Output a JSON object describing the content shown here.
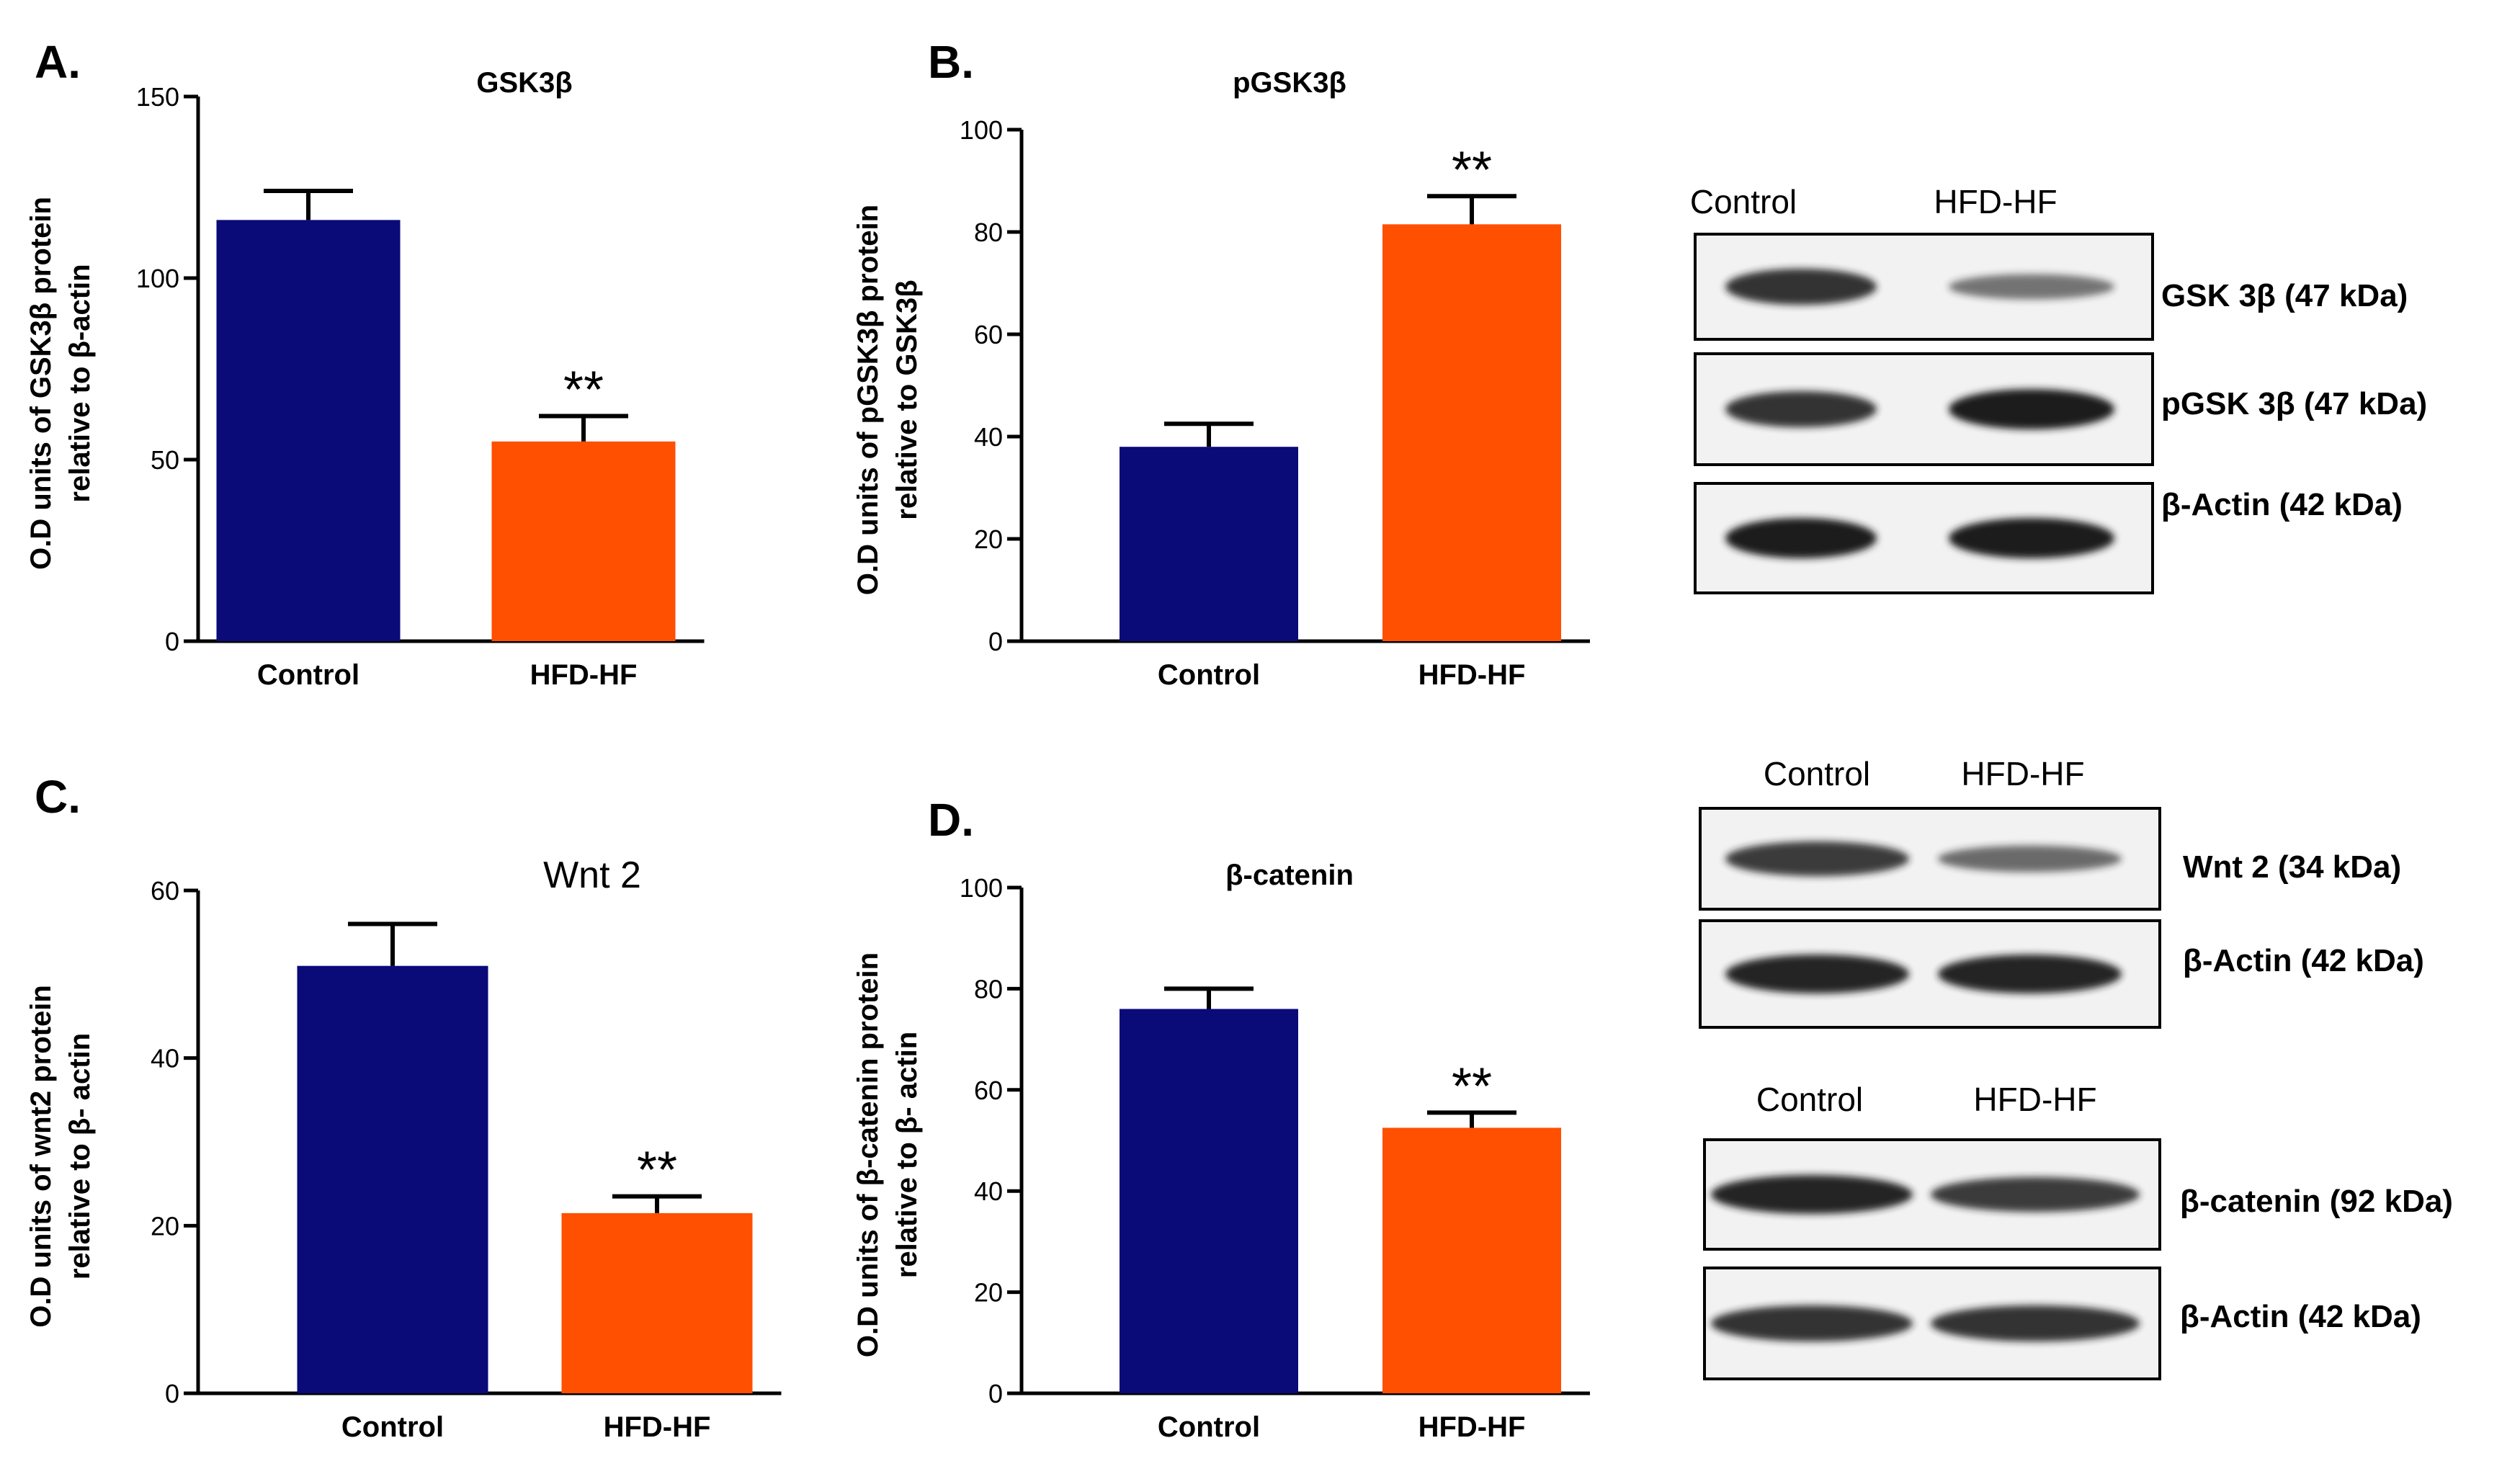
{
  "colors": {
    "control": "#0a0a78",
    "hfd": "#ff4f00",
    "axis": "#000000",
    "blot_bg": "#f2f2f2",
    "band": "#1c1c1c"
  },
  "panels": [
    {
      "letter": "A."
    },
    {
      "letter": "B."
    },
    {
      "letter": "C."
    },
    {
      "letter": "D."
    }
  ],
  "chart_data": [
    {
      "type": "bar",
      "panel": "A.",
      "title": "GSK3β",
      "ylabel_line1": "O.D units of GSK3β protein",
      "ylabel_line2": "relative to β-actin",
      "categories": [
        "Control",
        "HFD-HF"
      ],
      "values": [
        116,
        55
      ],
      "errors": [
        8,
        7
      ],
      "significance": [
        "",
        "**"
      ],
      "ylim": [
        0,
        150
      ],
      "yticks": [
        0,
        50,
        100,
        150
      ]
    },
    {
      "type": "bar",
      "panel": "B.",
      "title": "pGSK3β",
      "ylabel_line1": "O.D units of pGSK3β protein",
      "ylabel_line2": "relative to GSK3β",
      "categories": [
        "Control",
        "HFD-HF"
      ],
      "values": [
        38,
        81.5
      ],
      "errors": [
        4.5,
        5.5
      ],
      "significance": [
        "",
        "**"
      ],
      "ylim": [
        0,
        100
      ],
      "yticks": [
        0,
        20,
        40,
        60,
        80,
        100
      ]
    },
    {
      "type": "bar",
      "panel": "C.",
      "title": "Wnt 2",
      "ylabel_line1": "O.D units of wnt2 protein",
      "ylabel_line2": "relative to β- actin",
      "categories": [
        "Control",
        "HFD-HF"
      ],
      "values": [
        51,
        21.5
      ],
      "errors": [
        5,
        2
      ],
      "significance": [
        "",
        "**"
      ],
      "ylim": [
        0,
        60
      ],
      "yticks": [
        0,
        20,
        40,
        60
      ]
    },
    {
      "type": "bar",
      "panel": "D.",
      "title": "β-catenin",
      "ylabel_line1": "O.D units of β-catenin protein",
      "ylabel_line2": "relative to β- actin",
      "categories": [
        "Control",
        "HFD-HF"
      ],
      "values": [
        76,
        52.5
      ],
      "errors": [
        4,
        3
      ],
      "significance": [
        "",
        "**"
      ],
      "ylim": [
        0,
        100
      ],
      "yticks": [
        0,
        20,
        40,
        60,
        80,
        100
      ]
    }
  ],
  "blots": [
    {
      "headers": [
        "Control",
        "HFD-HF"
      ],
      "rows": [
        {
          "label": "GSK 3β (47 kDa)",
          "bands": [
            0.85,
            0.45
          ]
        },
        {
          "label": "pGSK 3β (47 kDa)",
          "bands": [
            0.85,
            1.0
          ]
        },
        {
          "label": "β-Actin (42 kDa)",
          "bands": [
            1.0,
            1.0
          ]
        }
      ]
    },
    {
      "headers": [
        "Control",
        "HFD-HF"
      ],
      "rows": [
        {
          "label": "Wnt 2 (34 kDa)",
          "bands": [
            0.8,
            0.5
          ]
        },
        {
          "label": "β-Actin (42 kDa)",
          "bands": [
            0.95,
            0.95
          ]
        }
      ]
    },
    {
      "headers": [
        "Control",
        "HFD-HF"
      ],
      "rows": [
        {
          "label": "β-catenin (92 kDa)",
          "bands": [
            0.95,
            0.8
          ]
        },
        {
          "label": "β-Actin (42 kDa)",
          "bands": [
            0.85,
            0.85
          ]
        }
      ]
    }
  ]
}
